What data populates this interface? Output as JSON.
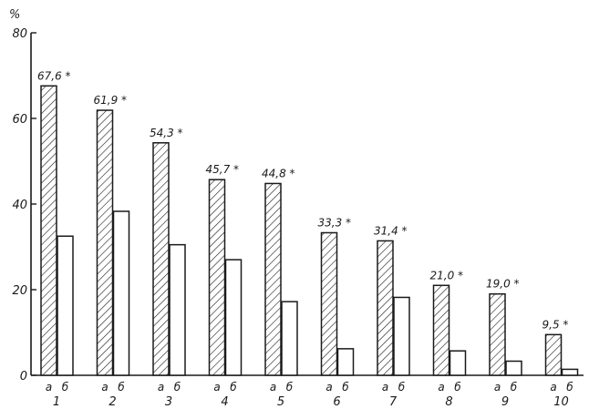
{
  "chart_data": {
    "type": "bar",
    "unit_label": "%",
    "y_ticks": [
      "0",
      "20",
      "40",
      "60",
      "80"
    ],
    "ylim": [
      0,
      80
    ],
    "grid": false,
    "categories": [
      "1",
      "2",
      "3",
      "4",
      "5",
      "6",
      "7",
      "8",
      "9",
      "10"
    ],
    "sub_labels": [
      "а",
      "б"
    ],
    "series": [
      {
        "values": [
          67.6,
          61.9,
          54.3,
          45.7,
          44.8,
          33.3,
          31.4,
          21.0,
          19.0,
          9.5
        ],
        "labels": [
          "67,6 *",
          "61,9 *",
          "54,3 *",
          "45,7 *",
          "44,8 *",
          "33,3 *",
          "31,4 *",
          "21,0 *",
          "19,0 *",
          "9,5 *"
        ]
      },
      {
        "values": [
          32.5,
          38.3,
          30.5,
          27.0,
          17.2,
          6.2,
          18.2,
          5.7,
          3.3,
          1.4
        ]
      }
    ]
  }
}
